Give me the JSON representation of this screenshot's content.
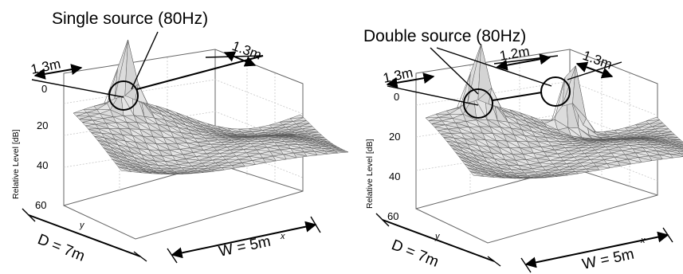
{
  "panels": [
    {
      "title": "Single source (80Hz)",
      "dim_left": "1.3m",
      "dim_right": "1.3m",
      "ylabel": "Relative Level [dB]",
      "ticks": [
        "0",
        "20",
        "40",
        "60"
      ],
      "axis_y": "y",
      "axis_x": "x",
      "depth": "D = 7m",
      "width": "W = 5m"
    },
    {
      "title": "Double source (80Hz)",
      "dim_left": "1.3m",
      "dim_mid": "1.2m",
      "dim_right": "1.3m",
      "ylabel": "Relative Level [dB]",
      "ticks": [
        "0",
        "20",
        "40",
        "60"
      ],
      "axis_y": "y",
      "axis_x": "x",
      "depth": "D = 7m",
      "width": "W = 5m"
    }
  ]
}
